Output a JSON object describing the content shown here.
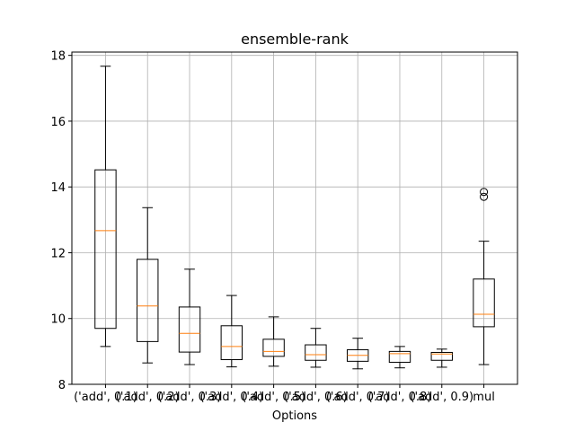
{
  "chart_data": {
    "type": "box",
    "title": "ensemble-rank",
    "xlabel": "Options",
    "ylabel": "",
    "ylim": [
      8,
      18.1
    ],
    "yticks": [
      8,
      10,
      12,
      14,
      16,
      18
    ],
    "grid": true,
    "categories": [
      "('add', 0.1)",
      "('add', 0.2)",
      "('add', 0.3)",
      "('add', 0.4)",
      "('add', 0.5)",
      "('add', 0.6)",
      "('add', 0.7)",
      "('add', 0.8)",
      "('add', 0.9)",
      "mul"
    ],
    "boxes": [
      {
        "whislo": 9.15,
        "q1": 9.7,
        "med": 12.67,
        "q3": 14.52,
        "whishi": 17.67,
        "fliers": []
      },
      {
        "whislo": 8.65,
        "q1": 9.3,
        "med": 10.38,
        "q3": 11.8,
        "whishi": 13.37,
        "fliers": []
      },
      {
        "whislo": 8.6,
        "q1": 8.98,
        "med": 9.55,
        "q3": 10.35,
        "whishi": 11.5,
        "fliers": []
      },
      {
        "whislo": 8.53,
        "q1": 8.75,
        "med": 9.15,
        "q3": 9.78,
        "whishi": 10.7,
        "fliers": []
      },
      {
        "whislo": 8.55,
        "q1": 8.85,
        "med": 9.0,
        "q3": 9.37,
        "whishi": 10.05,
        "fliers": []
      },
      {
        "whislo": 8.52,
        "q1": 8.73,
        "med": 8.9,
        "q3": 9.2,
        "whishi": 9.7,
        "fliers": []
      },
      {
        "whislo": 8.47,
        "q1": 8.7,
        "med": 8.88,
        "q3": 9.05,
        "whishi": 9.4,
        "fliers": []
      },
      {
        "whislo": 8.5,
        "q1": 8.67,
        "med": 8.93,
        "q3": 9.0,
        "whishi": 9.15,
        "fliers": []
      },
      {
        "whislo": 8.52,
        "q1": 8.73,
        "med": 8.92,
        "q3": 8.97,
        "whishi": 9.07,
        "fliers": []
      },
      {
        "whislo": 8.6,
        "q1": 9.75,
        "med": 10.13,
        "q3": 11.2,
        "whishi": 12.35,
        "fliers": [
          13.7,
          13.85
        ]
      }
    ],
    "colors": {
      "box": "#000000",
      "median": "#ff7f0e",
      "grid": "#b0b0b0",
      "axes": "#000000",
      "background": "#ffffff"
    }
  }
}
